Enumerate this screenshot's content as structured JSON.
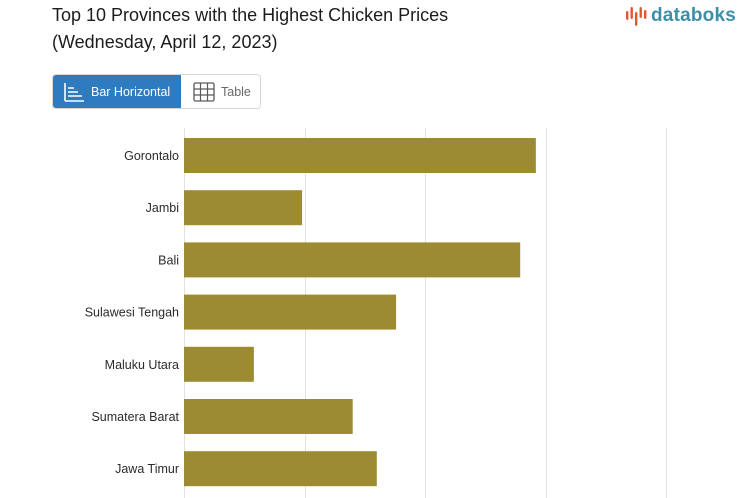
{
  "header": {
    "title_line1": "Top 10 Provinces with the Highest Chicken Prices",
    "title_line2": "(Wednesday, April 12, 2023)"
  },
  "brand": {
    "name": "databoks",
    "text_color": "#3d8fa8",
    "mark_color": "#e4572e"
  },
  "view_toggle": {
    "bar_label": "Bar Horizontal",
    "table_label": "Table",
    "active_color": "#2f7bbf"
  },
  "chart_data": {
    "type": "bar",
    "orientation": "horizontal",
    "categories": [
      "Gorontalo",
      "Jambi",
      "Bali",
      "Sulawesi Tengah",
      "Maluku Utara",
      "Sumatera Barat",
      "Jawa Timur"
    ],
    "values": [
      29.2,
      9.8,
      27.9,
      17.6,
      5.8,
      14.0,
      16.0
    ],
    "xlim": [
      0,
      40
    ],
    "grid": true,
    "bar_color": "#9d8b33",
    "grid_color": "#e2e2e2"
  }
}
